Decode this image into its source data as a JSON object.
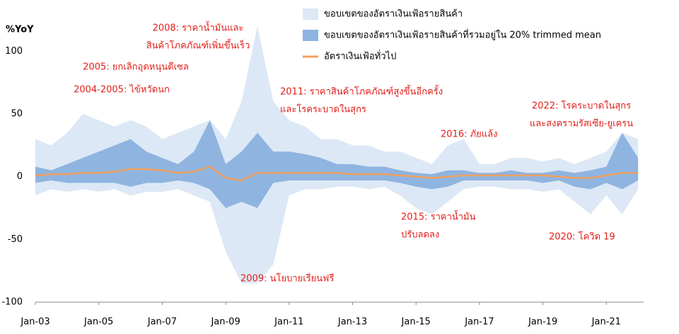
{
  "chart_data": {
    "type": "band-line",
    "y_label": "%YoY",
    "x": [
      2003,
      2003.5,
      2004,
      2004.5,
      2005,
      2005.5,
      2006,
      2006.5,
      2007,
      2007.5,
      2008,
      2008.5,
      2009,
      2009.5,
      2010,
      2010.5,
      2011,
      2011.5,
      2012,
      2012.5,
      2013,
      2013.5,
      2014,
      2014.5,
      2015,
      2015.5,
      2016,
      2016.5,
      2017,
      2017.5,
      2018,
      2018.5,
      2019,
      2019.5,
      2020,
      2020.5,
      2021,
      2021.5,
      2022
    ],
    "xlim": [
      2003,
      2023
    ],
    "xticks": [
      {
        "value": 2003,
        "label": "Jan-03"
      },
      {
        "value": 2005,
        "label": "Jan-05"
      },
      {
        "value": 2007,
        "label": "Jan-07"
      },
      {
        "value": 2009,
        "label": "Jan-09"
      },
      {
        "value": 2011,
        "label": "Jan-11"
      },
      {
        "value": 2013,
        "label": "Jan-13"
      },
      {
        "value": 2015,
        "label": "Jan-15"
      },
      {
        "value": 2017,
        "label": "Jan-17"
      },
      {
        "value": 2019,
        "label": "Jan-19"
      },
      {
        "value": 2021,
        "label": "Jan-21"
      }
    ],
    "ylim": [
      -100,
      125
    ],
    "yticks": [
      -100,
      -50,
      0,
      50,
      100
    ],
    "series": [
      {
        "name": "ขอบเขตของอัตราเงินเฟ้อรายสินค้า",
        "kind": "band",
        "color": "#dce8f5",
        "upper": [
          30,
          25,
          35,
          50,
          45,
          40,
          45,
          40,
          30,
          35,
          40,
          45,
          30,
          60,
          120,
          60,
          45,
          40,
          30,
          30,
          25,
          25,
          20,
          20,
          15,
          10,
          25,
          30,
          10,
          10,
          15,
          15,
          12,
          15,
          10,
          15,
          20,
          35,
          30
        ],
        "lower": [
          -15,
          -10,
          -12,
          -10,
          -12,
          -10,
          -15,
          -12,
          -12,
          -10,
          -15,
          -20,
          -60,
          -85,
          -85,
          -70,
          -15,
          -10,
          -10,
          -8,
          -8,
          -10,
          -8,
          -15,
          -25,
          -30,
          -20,
          -10,
          -8,
          -8,
          -10,
          -10,
          -12,
          -10,
          -20,
          -30,
          -15,
          -30,
          -10
        ]
      },
      {
        "name": "ขอบเขตของอัตราเงินเฟ้อรายสินค้าที่รวมอยู่ใน 20% trimmed mean",
        "kind": "band",
        "color": "#8fb4e0",
        "upper": [
          8,
          5,
          10,
          15,
          20,
          25,
          30,
          20,
          15,
          10,
          20,
          45,
          10,
          20,
          35,
          20,
          20,
          18,
          15,
          10,
          10,
          8,
          8,
          5,
          3,
          2,
          5,
          5,
          3,
          3,
          5,
          3,
          3,
          5,
          3,
          5,
          8,
          35,
          15
        ],
        "lower": [
          -5,
          -3,
          -5,
          -5,
          -5,
          -5,
          -8,
          -5,
          -5,
          -3,
          -5,
          -10,
          -25,
          -20,
          -25,
          -5,
          -3,
          -3,
          -3,
          -3,
          -3,
          -3,
          -3,
          -5,
          -8,
          -10,
          -8,
          -3,
          -3,
          -3,
          -3,
          -3,
          -5,
          -3,
          -8,
          -10,
          -5,
          -10,
          -3
        ]
      },
      {
        "name": "อัตราเงินเฟ้อทั่วไป",
        "kind": "line",
        "color": "#f0a060",
        "values": [
          1,
          2,
          2,
          3,
          3,
          4,
          6,
          6,
          5,
          3,
          4,
          8,
          -1,
          -3,
          3,
          3,
          3,
          3,
          3,
          3,
          2,
          2,
          2,
          1,
          0,
          -1,
          0,
          1,
          1,
          1,
          1,
          1,
          1,
          0,
          -1,
          -1,
          1,
          3,
          3
        ]
      }
    ],
    "annotation_color": "#e0201b",
    "annotations": [
      [
        "2008: ราคาน้ำมันและ",
        "สินค้าโภคภัณฑ์เพิ่มขึ้นเร็ว"
      ],
      [
        "2005: ยกเลิกอุดหนุนดีเซล"
      ],
      [
        "2004-2005: ไข้หวัดนก"
      ],
      [
        "2011: ราคาสินค้าโภคภัณฑ์สูงขึ้นอีกครั้ง",
        "และโรคระบาดในสุกร"
      ],
      [
        "2016: ภัยแล้ง"
      ],
      [
        "2022: โรคระบาดในสุกร",
        "และสงครามรัสเซีย-ยูเครน"
      ],
      [
        "2015: ราคาน้ำมัน",
        "ปรับลดลง"
      ],
      [
        "2020: โควิด 19"
      ],
      [
        "2009: นโยบายเรียนฟรี"
      ]
    ]
  }
}
